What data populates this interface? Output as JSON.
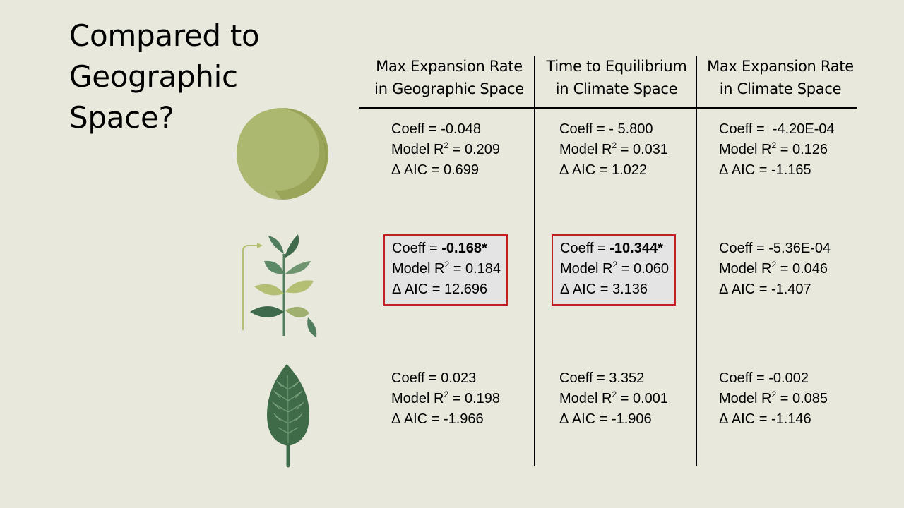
{
  "title": {
    "line1": "Compared to",
    "line2": "Geographic",
    "line3": "Space?"
  },
  "columns": [
    {
      "line1": "Max Expansion Rate",
      "line2": "in Geographic Space"
    },
    {
      "line1": "Time to Equilibrium",
      "line2": "in Climate Space"
    },
    {
      "line1": "Max Expansion Rate",
      "line2": "in Climate Space"
    }
  ],
  "labels": {
    "coeff": "Coeff = ",
    "model": "Model R",
    "r_exp": "2",
    "model_eq": " = ",
    "aic": "Δ AIC = "
  },
  "rows": [
    {
      "icon": "seed-icon",
      "cells": [
        {
          "coeff": "-0.048",
          "r2": "0.209",
          "aic": "0.699",
          "highlight": false
        },
        {
          "coeff": "- 5.800",
          "r2": "0.031",
          "aic": "1.022",
          "highlight": false
        },
        {
          "coeff": " -4.20E-04",
          "r2": "0.126",
          "aic": "-1.165",
          "highlight": false
        }
      ]
    },
    {
      "icon": "sprout-icon",
      "cells": [
        {
          "coeff": "-0.168*",
          "r2": "0.184",
          "aic": "12.696",
          "highlight": true
        },
        {
          "coeff": "-10.344*",
          "r2": "0.060",
          "aic": "3.136",
          "highlight": true
        },
        {
          "coeff": "-5.36E-04",
          "r2": "0.046",
          "aic": "-1.407",
          "highlight": false
        }
      ]
    },
    {
      "icon": "leaf-icon",
      "cells": [
        {
          "coeff": "0.023",
          "r2": "0.198",
          "aic": "-1.966",
          "highlight": false
        },
        {
          "coeff": "3.352",
          "r2": "0.001",
          "aic": "-1.906",
          "highlight": false
        },
        {
          "coeff": "-0.002",
          "r2": "0.085",
          "aic": "-1.146",
          "highlight": false
        }
      ]
    }
  ],
  "colors": {
    "background": "#e8e9dc",
    "highlight_border": "#c0201f",
    "highlight_fill": "#e4e4e4",
    "seed": "#a9b46c",
    "sprout_leaf_dark": "#4f7d5e",
    "sprout_leaf_light": "#b4bf74",
    "leaf": "#3f6b48"
  }
}
